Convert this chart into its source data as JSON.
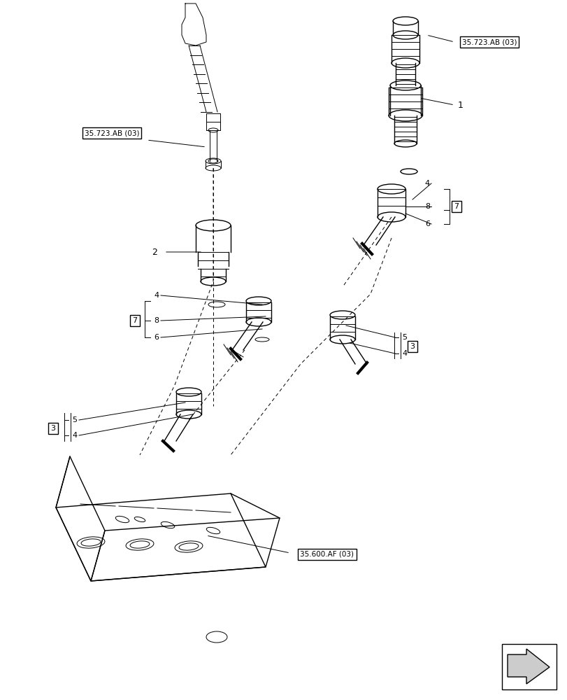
{
  "bg_color": "#ffffff",
  "line_color": "#000000",
  "fig_width": 8.12,
  "fig_height": 10.0,
  "dpi": 100,
  "labels": {
    "ref1_top_left": "35.723.AB (03)",
    "ref1_top_right": "35.723.AB (03)",
    "ref2": "35.600.AF (03)",
    "item1": "1",
    "item2": "2",
    "item3": "3",
    "item4": "4",
    "item5": "5",
    "item6": "6",
    "item7": "7",
    "item8": "8"
  },
  "arrow_color": "#000000",
  "part_line_color": "#333333",
  "bracket_color": "#000000"
}
